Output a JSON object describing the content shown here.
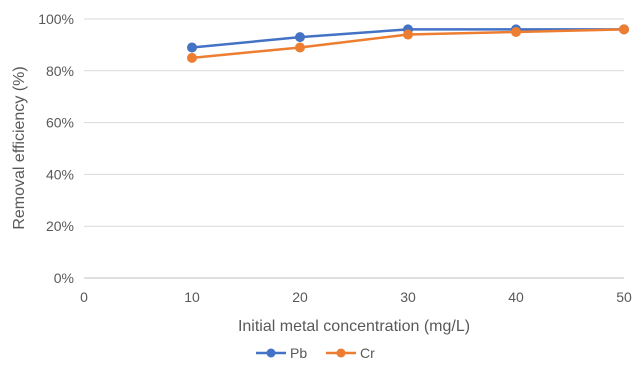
{
  "chart_data": {
    "type": "line",
    "title": "",
    "xlabel": "Initial metal concentration (mg/L)",
    "ylabel": "Removal efficiency (%)",
    "xlim": [
      0,
      50
    ],
    "ylim": [
      0,
      100
    ],
    "x_ticks": [
      "0",
      "10",
      "20",
      "30",
      "40",
      "50"
    ],
    "y_ticks": [
      "0%",
      "20%",
      "40%",
      "60%",
      "80%",
      "100%"
    ],
    "grid": "horizontal",
    "legend_position": "bottom",
    "series": [
      {
        "name": "Pb",
        "color": "#4472C4",
        "x": [
          10,
          20,
          30,
          40,
          50
        ],
        "y": [
          89,
          93,
          96,
          96,
          96
        ]
      },
      {
        "name": "Cr",
        "color": "#ED7D31",
        "x": [
          10,
          20,
          30,
          40,
          50
        ],
        "y": [
          85,
          89,
          94,
          95,
          96
        ]
      }
    ]
  }
}
